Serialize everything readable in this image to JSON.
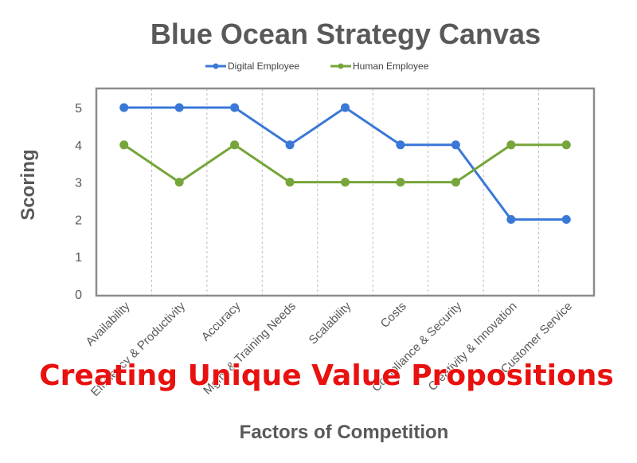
{
  "overlay_text": "Creating Unique Value Propositions",
  "colors": {
    "digital": "#3a78d8",
    "human": "#76a53a",
    "text": "#595959",
    "overlay": "#e8110f",
    "frame": "#8c8c8c"
  },
  "chart_data": {
    "type": "line",
    "title": "Blue Ocean Strategy Canvas",
    "xlabel": "Factors of Competition",
    "ylabel": "Scoring",
    "ylim": [
      0,
      5
    ],
    "yticks": [
      "0",
      "1",
      "2",
      "3",
      "4",
      "5"
    ],
    "grid": "vertical dashed",
    "legend": "top",
    "categories": [
      "Availability",
      "Efficiency & Productivity",
      "Accuracy",
      "Mgmt & Training Needs",
      "Scalability",
      "Costs",
      "Compliance & Security",
      "Creativity & Innovation",
      "Customer Service"
    ],
    "series": [
      {
        "name": "Digital Employee",
        "values": [
          5,
          5,
          5,
          4,
          5,
          4,
          4,
          2,
          2
        ]
      },
      {
        "name": "Human Employee",
        "values": [
          4,
          3,
          4,
          3,
          3,
          3,
          3,
          4,
          4
        ]
      }
    ]
  }
}
